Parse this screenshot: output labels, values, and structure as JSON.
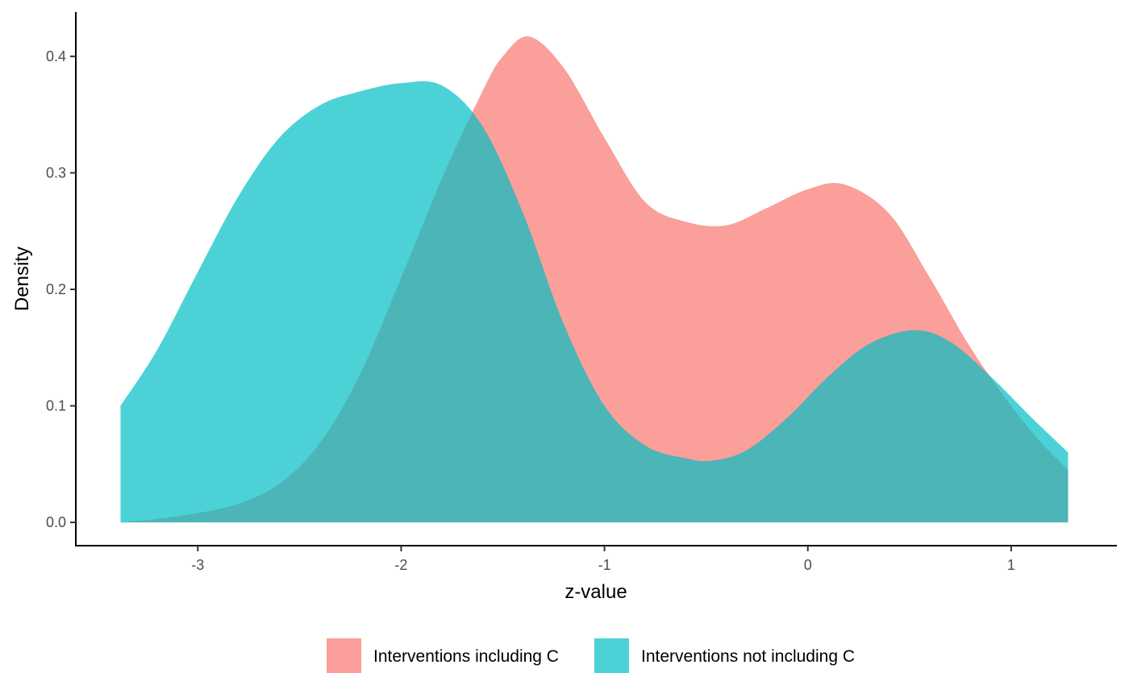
{
  "chart_data": {
    "type": "area",
    "xlabel": "z-value",
    "ylabel": "Density",
    "xlim": [
      -3.6,
      1.52
    ],
    "ylim": [
      -0.02,
      0.438
    ],
    "x_ticks": [
      -3,
      -2,
      -1,
      0,
      1
    ],
    "x_tick_labels": [
      "-3",
      "-2",
      "-1",
      "0",
      "1"
    ],
    "y_ticks": [
      0.0,
      0.1,
      0.2,
      0.3,
      0.4
    ],
    "y_tick_labels": [
      "0.0",
      "0.1",
      "0.2",
      "0.3",
      "0.4"
    ],
    "grid": false,
    "legend_position": "bottom",
    "series": [
      {
        "name": "Interventions including C",
        "color": "#F8766D",
        "opacity": 0.7,
        "x": [
          -3.38,
          -3.2,
          -3.0,
          -2.8,
          -2.6,
          -2.4,
          -2.2,
          -2.0,
          -1.8,
          -1.6,
          -1.5,
          -1.37,
          -1.2,
          -1.0,
          -0.8,
          -0.6,
          -0.4,
          -0.2,
          0.0,
          0.18,
          0.4,
          0.6,
          0.8,
          1.0,
          1.15,
          1.28
        ],
        "y": [
          0.0,
          0.003,
          0.008,
          0.016,
          0.033,
          0.068,
          0.128,
          0.21,
          0.295,
          0.37,
          0.4,
          0.417,
          0.39,
          0.33,
          0.275,
          0.258,
          0.255,
          0.27,
          0.286,
          0.29,
          0.265,
          0.21,
          0.15,
          0.1,
          0.068,
          0.045
        ]
      },
      {
        "name": "Interventions not including C",
        "color": "#00BFC4",
        "opacity": 0.7,
        "x": [
          -3.38,
          -3.2,
          -3.0,
          -2.8,
          -2.6,
          -2.4,
          -2.2,
          -2.0,
          -1.8,
          -1.6,
          -1.4,
          -1.2,
          -1.0,
          -0.8,
          -0.6,
          -0.47,
          -0.3,
          -0.1,
          0.1,
          0.3,
          0.52,
          0.7,
          0.9,
          1.1,
          1.28
        ],
        "y": [
          0.1,
          0.148,
          0.215,
          0.28,
          0.33,
          0.358,
          0.37,
          0.377,
          0.375,
          0.34,
          0.265,
          0.17,
          0.1,
          0.066,
          0.055,
          0.053,
          0.062,
          0.09,
          0.125,
          0.153,
          0.165,
          0.155,
          0.125,
          0.09,
          0.06
        ]
      }
    ]
  }
}
